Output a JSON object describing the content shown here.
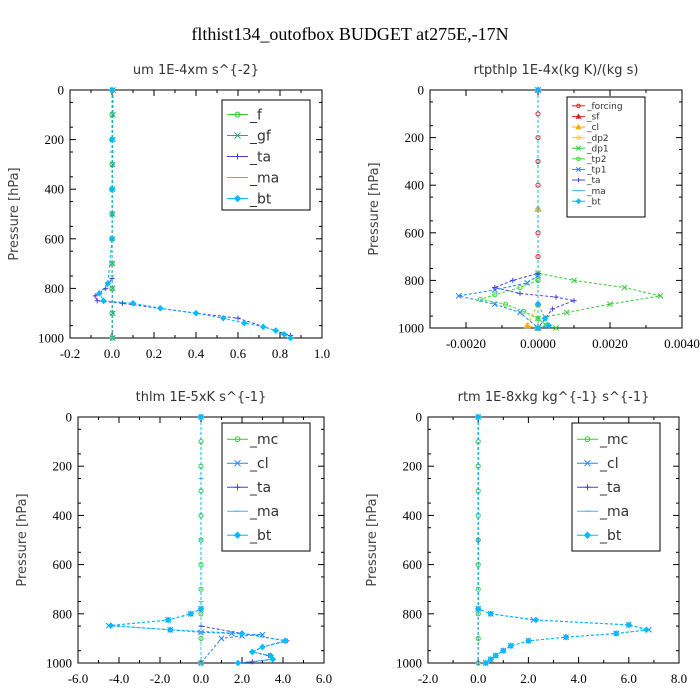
{
  "figure_title": "flthist134_outofbox  BUDGET at275E,-17N",
  "chart_data": [
    {
      "type": "line",
      "title": "um   1E-4xm s^{-2}",
      "ylabel": "Pressure [hPa]",
      "xlim": [
        -0.2,
        1.0
      ],
      "ylim": [
        1000,
        0
      ],
      "x_ticks": [
        "-0.2",
        "0.0",
        "0.2",
        "0.4",
        "0.6",
        "0.8",
        "1.0"
      ],
      "y_ticks": [
        "0",
        "200",
        "400",
        "600",
        "800",
        "1000"
      ],
      "legend": "top-right",
      "series": [
        {
          "name": "_f",
          "color": "#33cc33",
          "marker": "circle",
          "x": [
            0,
            0,
            0,
            0,
            0,
            0,
            0,
            0,
            0,
            0,
            0
          ],
          "y": [
            0,
            100,
            200,
            300,
            400,
            500,
            600,
            700,
            800,
            900,
            1000
          ]
        },
        {
          "name": "_gf",
          "color": "#22aa77",
          "marker": "x",
          "x": [
            0.005,
            0.004,
            0.003,
            0.003,
            0.002,
            0.002,
            0.001,
            0.001,
            0.002,
            0.003,
            0.003
          ],
          "y": [
            0,
            100,
            200,
            300,
            400,
            500,
            600,
            700,
            800,
            900,
            1000
          ]
        },
        {
          "name": "_ta",
          "color": "#4444dd",
          "marker": "plus",
          "x": [
            0,
            0,
            0,
            0,
            0,
            -0.03,
            -0.08,
            -0.07,
            0.05,
            0.4,
            0.6,
            0.85
          ],
          "y": [
            0,
            200,
            400,
            600,
            760,
            800,
            830,
            850,
            860,
            900,
            920,
            990
          ]
        },
        {
          "name": "_ma",
          "color": "#44bbdd",
          "marker": "dash",
          "x": [
            0,
            0,
            0,
            0,
            0
          ],
          "y": [
            0,
            250,
            500,
            750,
            1000
          ]
        },
        {
          "name": "_bt",
          "color": "#00bbff",
          "marker": "diamond",
          "x": [
            0,
            0,
            0,
            0,
            -0.02,
            -0.06,
            -0.04,
            0.1,
            0.23,
            0.4,
            0.53,
            0.63,
            0.72,
            0.78,
            0.82,
            0.85
          ],
          "y": [
            0,
            200,
            400,
            600,
            780,
            820,
            850,
            860,
            880,
            900,
            920,
            940,
            955,
            970,
            985,
            1000
          ]
        }
      ]
    },
    {
      "type": "line",
      "title": "rtpthlp   1E-4x(kg K)/(kg s)",
      "ylabel": "Pressure [hPa]",
      "xlim": [
        -0.003,
        0.004
      ],
      "ylim": [
        1000,
        0
      ],
      "x_ticks": [
        "-0.0020",
        "0.0000",
        "0.0020",
        "0.0040"
      ],
      "x_tick_values": [
        -0.002,
        0.0,
        0.002,
        0.004
      ],
      "y_ticks": [
        "0",
        "200",
        "400",
        "600",
        "800",
        "1000"
      ],
      "legend": "top-right",
      "series": [
        {
          "name": "_forcing",
          "color": "#dd2222",
          "marker": "circle",
          "x": [
            0,
            0,
            0,
            0,
            0,
            0,
            0,
            0,
            0,
            0,
            0
          ],
          "y": [
            0,
            100,
            200,
            300,
            400,
            500,
            600,
            700,
            800,
            900,
            1000
          ]
        },
        {
          "name": "_sf",
          "color": "#dd2222",
          "marker": "triangle",
          "x": [
            0,
            0,
            0
          ],
          "y": [
            0,
            500,
            1000
          ]
        },
        {
          "name": "_cl",
          "color": "#ffaa00",
          "marker": "triangle",
          "x": [
            0,
            0,
            0,
            -0.0003,
            0
          ],
          "y": [
            0,
            500,
            900,
            990,
            1000
          ]
        },
        {
          "name": "_dp2",
          "color": "#ffcc33",
          "marker": "circle",
          "x": [
            0,
            0,
            0
          ],
          "y": [
            0,
            500,
            1000
          ]
        },
        {
          "name": "_dp1",
          "color": "#33cc33",
          "marker": "x",
          "x": [
            0,
            0,
            0.001,
            0.0024,
            0.0034,
            0.002,
            0.0008,
            0,
            0.0002,
            0.0005
          ],
          "y": [
            0,
            770,
            800,
            830,
            865,
            900,
            935,
            960,
            985,
            1000
          ]
        },
        {
          "name": "_tp2",
          "color": "#33dd33",
          "marker": "circle",
          "x": [
            0,
            0,
            -0.0005,
            -0.0012,
            -0.0016,
            -0.0009,
            -0.0004,
            0,
            0
          ],
          "y": [
            0,
            800,
            830,
            860,
            880,
            900,
            930,
            960,
            1000
          ]
        },
        {
          "name": "_tp1",
          "color": "#2288ff",
          "marker": "x",
          "x": [
            0,
            0,
            -0.0003,
            -0.0012,
            -0.0022,
            -0.0012,
            -0.0005,
            0
          ],
          "y": [
            0,
            780,
            810,
            840,
            865,
            900,
            935,
            1000
          ]
        },
        {
          "name": "_ta",
          "color": "#4444dd",
          "marker": "plus",
          "x": [
            0,
            0,
            -0.0007,
            -0.0012,
            -0.0005,
            0.0005,
            0.001,
            0.0004,
            0
          ],
          "y": [
            0,
            770,
            800,
            830,
            855,
            870,
            885,
            920,
            1000
          ]
        },
        {
          "name": "_ma",
          "color": "#44bbdd",
          "marker": "dash",
          "x": [
            0,
            0,
            0
          ],
          "y": [
            0,
            500,
            1000
          ]
        },
        {
          "name": "_bt",
          "color": "#00bbff",
          "marker": "diamond",
          "x": [
            0,
            0,
            0.0002,
            0.0003,
            0
          ],
          "y": [
            0,
            900,
            960,
            990,
            1000
          ]
        }
      ]
    },
    {
      "type": "line",
      "title": "thlm   1E-5xK s^{-1}",
      "ylabel": "Pressure [hPa]",
      "xlim": [
        -6.0,
        6.0
      ],
      "ylim": [
        1000,
        0
      ],
      "x_ticks": [
        "-6.0",
        "-4.0",
        "-2.0",
        "0.0",
        "2.0",
        "4.0",
        "6.0"
      ],
      "y_ticks": [
        "0",
        "200",
        "400",
        "600",
        "800",
        "1000"
      ],
      "legend": "top-right",
      "series": [
        {
          "name": "_mc",
          "color": "#33cc33",
          "marker": "circle",
          "x": [
            0,
            0,
            0,
            0,
            0,
            0,
            0,
            0,
            0,
            0,
            0
          ],
          "y": [
            0,
            100,
            200,
            300,
            400,
            500,
            600,
            700,
            800,
            900,
            1000
          ]
        },
        {
          "name": "_cl",
          "color": "#2288ff",
          "marker": "x",
          "x": [
            0,
            0,
            -0.5,
            -1.6,
            -4.5,
            -1.5,
            0,
            1.5,
            3,
            2,
            1,
            0
          ],
          "y": [
            0,
            780,
            800,
            825,
            848,
            865,
            875,
            880,
            885,
            890,
            900,
            1000
          ]
        },
        {
          "name": "_ta",
          "color": "#4444dd",
          "marker": "plus",
          "x": [
            0,
            0,
            2,
            4.2,
            3,
            2.5,
            3.3,
            3.5,
            2.5,
            1.8
          ],
          "y": [
            0,
            850,
            880,
            910,
            935,
            955,
            970,
            985,
            995,
            1000
          ]
        },
        {
          "name": "_ma",
          "color": "#44bbdd",
          "marker": "dash",
          "x": [
            0,
            0,
            0,
            0,
            0
          ],
          "y": [
            0,
            250,
            500,
            750,
            1000
          ]
        },
        {
          "name": "_bt",
          "color": "#00bbff",
          "marker": "diamond",
          "x": [
            0,
            0,
            -0.5,
            -1.6,
            -4.4,
            -1.5,
            2,
            4.1,
            3,
            2.5,
            3.4,
            3.5,
            1.8
          ],
          "y": [
            0,
            780,
            800,
            825,
            848,
            865,
            880,
            910,
            935,
            955,
            970,
            985,
            1000
          ]
        }
      ]
    },
    {
      "type": "line",
      "title": "rtm   1E-8xkg kg^{-1} s^{-1}",
      "ylabel": "Pressure [hPa]",
      "xlim": [
        -2.0,
        8.0
      ],
      "ylim": [
        1000,
        0
      ],
      "x_ticks": [
        "-2.0",
        "0.0",
        "2.0",
        "4.0",
        "6.0",
        "8.0"
      ],
      "y_ticks": [
        "0",
        "200",
        "400",
        "600",
        "800",
        "1000"
      ],
      "legend": "top-right",
      "series": [
        {
          "name": "_mc",
          "color": "#33cc33",
          "marker": "circle",
          "x": [
            0,
            0,
            0,
            0,
            0,
            0,
            0,
            0,
            0,
            0,
            0
          ],
          "y": [
            0,
            100,
            200,
            300,
            400,
            500,
            600,
            700,
            800,
            900,
            1000
          ]
        },
        {
          "name": "_cl",
          "color": "#2288ff",
          "marker": "x",
          "x": [
            0,
            0,
            0.5,
            2.2,
            6,
            6.8,
            5.5,
            3.5,
            2,
            1.3,
            1,
            0.7,
            0.5,
            0.3
          ],
          "y": [
            0,
            780,
            800,
            825,
            845,
            865,
            880,
            895,
            910,
            930,
            950,
            970,
            985,
            1000
          ]
        },
        {
          "name": "_ta",
          "color": "#4444dd",
          "marker": "plus",
          "x": [
            0,
            0,
            0
          ],
          "y": [
            0,
            500,
            1000
          ]
        },
        {
          "name": "_ma",
          "color": "#44bbdd",
          "marker": "dash",
          "x": [
            0,
            0,
            0
          ],
          "y": [
            0,
            500,
            1000
          ]
        },
        {
          "name": "_bt",
          "color": "#00bbff",
          "marker": "diamond",
          "x": [
            0,
            0,
            0.5,
            2.3,
            6,
            6.7,
            5.5,
            3.5,
            2,
            1.3,
            1,
            0.7,
            0.5,
            0.3
          ],
          "y": [
            0,
            780,
            800,
            825,
            845,
            865,
            880,
            895,
            910,
            930,
            950,
            970,
            985,
            1000
          ]
        }
      ]
    }
  ]
}
